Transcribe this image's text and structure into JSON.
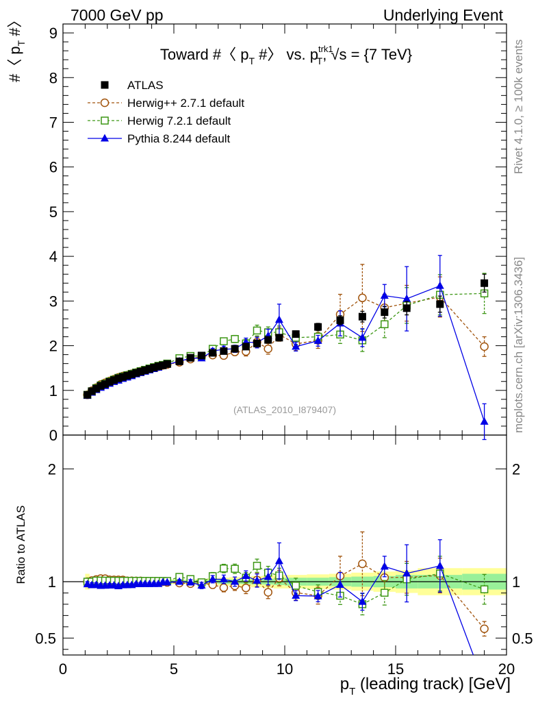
{
  "header": {
    "energy_label": "7000 GeV pp",
    "process_label": "Underlying Event"
  },
  "chart_data": {
    "type": "scatter",
    "title": "Toward #〈 p_T #〉 vs. p_T^trk1, √s = {7 TeV}",
    "title_parts": {
      "prefix": "Toward #〈 p",
      "t1": "T",
      "mid": " #〉 vs. p",
      "sup": "trk1",
      "t2": "T",
      "suffix": ", √s = {7 TeV}"
    },
    "ylabel": {
      "main": "#〈 p",
      "sub": "T",
      "end": " #〉"
    },
    "xlabel": {
      "main": "p",
      "sub": "T",
      "end": " (leading track) [GeV]"
    },
    "ratio_ylabel": "Ratio to ATLAS",
    "analysis_tag": "(ATLAS_2010_I879407)",
    "side_label_top": "Rivet 4.1.0, ≥ 100k events",
    "side_label_bottom": "mcplots.cern.ch [arXiv:1306.3436]",
    "xlim": [
      0,
      20
    ],
    "ylim": [
      0,
      9.2
    ],
    "ratio_ylim": [
      0.35,
      2.3
    ],
    "xticks": [
      "0",
      "5",
      "10",
      "15",
      "20"
    ],
    "yticks": [
      "0",
      "1",
      "2",
      "3",
      "4",
      "5",
      "6",
      "7",
      "8",
      "9"
    ],
    "ratio_yticks": [
      "0.5",
      "1",
      "2"
    ],
    "series": [
      {
        "name": "ATLAS",
        "color": "#000000",
        "marker": "square-filled",
        "line": "none",
        "x": [
          1.1,
          1.3,
          1.5,
          1.7,
          1.9,
          2.1,
          2.3,
          2.5,
          2.7,
          2.9,
          3.1,
          3.3,
          3.5,
          3.7,
          3.9,
          4.1,
          4.3,
          4.5,
          4.7,
          5.25,
          5.75,
          6.25,
          6.75,
          7.25,
          7.75,
          8.25,
          8.75,
          9.25,
          9.75,
          10.5,
          11.5,
          12.5,
          13.5,
          14.5,
          15.5,
          17.0,
          19.0
        ],
        "y": [
          0.9,
          0.98,
          1.04,
          1.1,
          1.14,
          1.19,
          1.23,
          1.27,
          1.3,
          1.33,
          1.36,
          1.39,
          1.42,
          1.45,
          1.48,
          1.51,
          1.54,
          1.56,
          1.59,
          1.65,
          1.73,
          1.78,
          1.84,
          1.88,
          1.93,
          1.98,
          2.05,
          2.13,
          2.18,
          2.26,
          2.42,
          2.57,
          2.65,
          2.75,
          2.84,
          2.93,
          3.4
        ],
        "err": [
          0.02,
          0.02,
          0.02,
          0.02,
          0.02,
          0.02,
          0.02,
          0.02,
          0.02,
          0.02,
          0.02,
          0.02,
          0.02,
          0.02,
          0.02,
          0.02,
          0.02,
          0.02,
          0.02,
          0.03,
          0.03,
          0.03,
          0.03,
          0.04,
          0.04,
          0.04,
          0.05,
          0.05,
          0.06,
          0.07,
          0.08,
          0.1,
          0.12,
          0.13,
          0.15,
          0.18,
          0.2
        ]
      },
      {
        "name": "Herwig++ 2.7.1 default",
        "color": "#a0520a",
        "marker": "circle-open",
        "line": "dashed",
        "x": [
          1.1,
          1.3,
          1.5,
          1.7,
          1.9,
          2.1,
          2.3,
          2.5,
          2.7,
          2.9,
          3.1,
          3.3,
          3.5,
          3.7,
          3.9,
          4.1,
          4.3,
          4.5,
          4.7,
          5.25,
          5.75,
          6.25,
          6.75,
          7.25,
          7.75,
          8.25,
          8.75,
          9.25,
          9.75,
          10.5,
          11.5,
          12.5,
          13.5,
          14.5,
          15.5,
          17.0,
          19.0
        ],
        "y": [
          0.9,
          0.99,
          1.06,
          1.13,
          1.17,
          1.21,
          1.25,
          1.29,
          1.32,
          1.34,
          1.37,
          1.4,
          1.43,
          1.45,
          1.48,
          1.51,
          1.53,
          1.56,
          1.58,
          1.63,
          1.7,
          1.76,
          1.79,
          1.78,
          1.86,
          1.87,
          2.08,
          1.93,
          2.25,
          2.04,
          2.12,
          2.7,
          3.07,
          2.85,
          2.95,
          3.09,
          1.98
        ],
        "err": [
          0.02,
          0.02,
          0.02,
          0.02,
          0.02,
          0.02,
          0.02,
          0.02,
          0.02,
          0.02,
          0.02,
          0.02,
          0.02,
          0.02,
          0.02,
          0.02,
          0.02,
          0.02,
          0.02,
          0.03,
          0.04,
          0.05,
          0.06,
          0.07,
          0.08,
          0.1,
          0.12,
          0.12,
          0.15,
          0.15,
          0.18,
          0.45,
          0.75,
          0.3,
          0.4,
          0.45,
          0.22
        ]
      },
      {
        "name": "Herwig 7.2.1 default",
        "color": "#3c9614",
        "marker": "square-open",
        "line": "dashed",
        "x": [
          1.1,
          1.3,
          1.5,
          1.7,
          1.9,
          2.1,
          2.3,
          2.5,
          2.7,
          2.9,
          3.1,
          3.3,
          3.5,
          3.7,
          3.9,
          4.1,
          4.3,
          4.5,
          4.7,
          5.25,
          5.75,
          6.25,
          6.75,
          7.25,
          7.75,
          8.25,
          8.75,
          9.25,
          9.75,
          10.5,
          11.5,
          12.5,
          13.5,
          14.5,
          15.5,
          17.0,
          19.0
        ],
        "y": [
          0.9,
          0.98,
          1.05,
          1.11,
          1.15,
          1.2,
          1.24,
          1.28,
          1.31,
          1.34,
          1.37,
          1.4,
          1.43,
          1.46,
          1.49,
          1.52,
          1.55,
          1.57,
          1.6,
          1.72,
          1.77,
          1.77,
          1.93,
          2.1,
          2.15,
          2.05,
          2.34,
          2.3,
          2.3,
          2.18,
          2.2,
          2.25,
          2.12,
          2.48,
          2.9,
          3.14,
          3.17
        ],
        "err": [
          0.02,
          0.02,
          0.02,
          0.02,
          0.02,
          0.02,
          0.02,
          0.02,
          0.02,
          0.02,
          0.02,
          0.02,
          0.02,
          0.02,
          0.02,
          0.02,
          0.02,
          0.02,
          0.02,
          0.03,
          0.04,
          0.05,
          0.06,
          0.07,
          0.08,
          0.09,
          0.12,
          0.12,
          0.14,
          0.15,
          0.15,
          0.2,
          0.25,
          0.3,
          0.4,
          0.45,
          0.45
        ]
      },
      {
        "name": "Pythia 8.244 default",
        "color": "#0000e6",
        "marker": "triangle-filled",
        "line": "solid",
        "x": [
          1.1,
          1.3,
          1.5,
          1.7,
          1.9,
          2.1,
          2.3,
          2.5,
          2.7,
          2.9,
          3.1,
          3.3,
          3.5,
          3.7,
          3.9,
          4.1,
          4.3,
          4.5,
          4.7,
          5.25,
          5.75,
          6.25,
          6.75,
          7.25,
          7.75,
          8.25,
          8.75,
          9.25,
          9.75,
          10.5,
          11.5,
          12.5,
          13.5,
          14.5,
          15.5,
          17.0,
          19.0
        ],
        "y": [
          0.88,
          0.95,
          1.01,
          1.06,
          1.1,
          1.15,
          1.19,
          1.22,
          1.26,
          1.29,
          1.32,
          1.36,
          1.39,
          1.42,
          1.45,
          1.48,
          1.51,
          1.55,
          1.58,
          1.65,
          1.72,
          1.72,
          1.88,
          1.92,
          1.93,
          2.08,
          2.07,
          2.22,
          2.58,
          1.98,
          2.11,
          2.5,
          2.18,
          3.12,
          3.05,
          3.34,
          0.3
        ],
        "err": [
          0.02,
          0.02,
          0.02,
          0.02,
          0.02,
          0.02,
          0.02,
          0.02,
          0.02,
          0.02,
          0.02,
          0.02,
          0.02,
          0.02,
          0.02,
          0.02,
          0.02,
          0.02,
          0.02,
          0.03,
          0.04,
          0.05,
          0.06,
          0.07,
          0.08,
          0.09,
          0.12,
          0.15,
          0.35,
          0.1,
          0.12,
          0.28,
          0.2,
          0.25,
          0.72,
          0.68,
          0.4
        ]
      }
    ],
    "ratio_band": {
      "x_edges": [
        1.0,
        1.2,
        1.4,
        1.6,
        1.8,
        2.0,
        2.2,
        2.4,
        2.6,
        2.8,
        3.0,
        3.2,
        3.4,
        3.6,
        3.8,
        4.0,
        4.2,
        4.4,
        4.6,
        4.8,
        5.5,
        6.0,
        6.5,
        7.0,
        7.5,
        8.0,
        8.5,
        9.0,
        9.5,
        10.0,
        11.0,
        12.0,
        13.0,
        14.0,
        15.0,
        16.0,
        18.0,
        20.0
      ],
      "stat": [
        0.03,
        0.02,
        0.02,
        0.015,
        0.015,
        0.015,
        0.015,
        0.015,
        0.015,
        0.015,
        0.015,
        0.015,
        0.015,
        0.015,
        0.015,
        0.015,
        0.015,
        0.015,
        0.015,
        0.015,
        0.015,
        0.015,
        0.015,
        0.02,
        0.02,
        0.02,
        0.025,
        0.025,
        0.03,
        0.035,
        0.035,
        0.04,
        0.045,
        0.05,
        0.06,
        0.06,
        0.07
      ],
      "total": [
        0.07,
        0.04,
        0.03,
        0.025,
        0.02,
        0.02,
        0.02,
        0.02,
        0.02,
        0.02,
        0.02,
        0.02,
        0.02,
        0.02,
        0.02,
        0.02,
        0.02,
        0.02,
        0.02,
        0.02,
        0.02,
        0.025,
        0.03,
        0.035,
        0.04,
        0.045,
        0.05,
        0.055,
        0.06,
        0.06,
        0.065,
        0.07,
        0.08,
        0.09,
        0.1,
        0.12,
        0.12
      ]
    }
  },
  "legend": [
    {
      "label": "ATLAS"
    },
    {
      "label": "Herwig++ 2.7.1 default"
    },
    {
      "label": "Herwig 7.2.1 default"
    },
    {
      "label": "Pythia 8.244 default"
    }
  ]
}
